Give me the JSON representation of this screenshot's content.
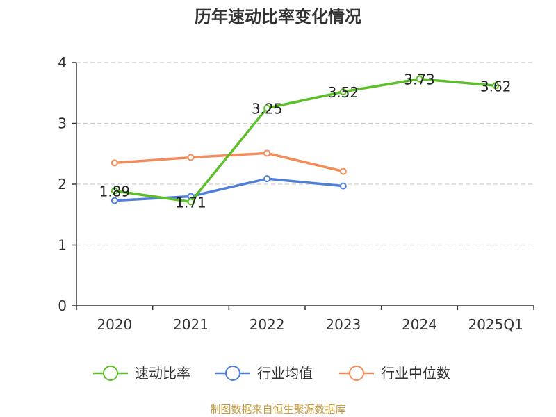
{
  "chart_data": {
    "type": "line",
    "title": "历年速动比率变化情况",
    "categories": [
      "2020",
      "2021",
      "2022",
      "2023",
      "2024",
      "2025Q1"
    ],
    "y_ticks": [
      "0",
      "1",
      "2",
      "3",
      "4"
    ],
    "ylim": [
      0,
      4
    ],
    "grid": true,
    "legend_position": "bottom",
    "series": [
      {
        "name": "速动比率",
        "color": "#5cbf2a",
        "values": [
          1.89,
          1.71,
          3.25,
          3.52,
          3.73,
          3.62
        ],
        "labels": [
          "1.89",
          "1.71",
          "3.25",
          "3.52",
          "3.73",
          "3.62"
        ]
      },
      {
        "name": "行业均值",
        "color": "#4f7fd9",
        "values": [
          1.73,
          1.8,
          2.09,
          1.97,
          null,
          null
        ]
      },
      {
        "name": "行业中位数",
        "color": "#f48c5a",
        "values": [
          2.35,
          2.44,
          2.51,
          2.21,
          null,
          null
        ]
      }
    ]
  },
  "footer": {
    "source": "制图数据来自恒生聚源数据库"
  }
}
